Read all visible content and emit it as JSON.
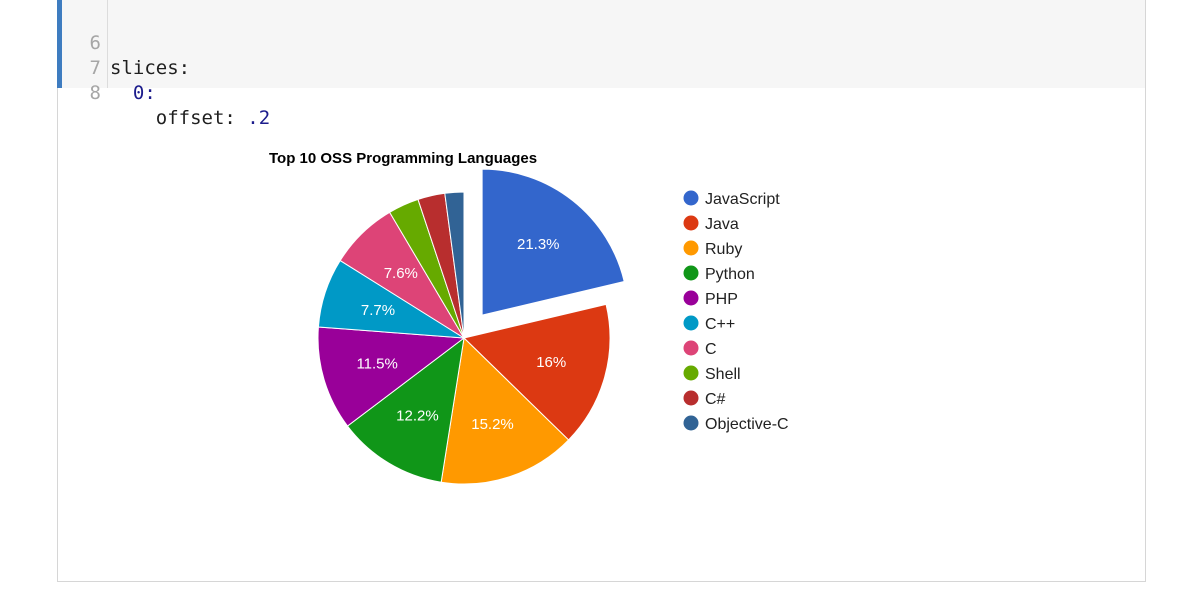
{
  "code": {
    "lines": [
      {
        "num": "6",
        "prefix": "slices:",
        "value": ""
      },
      {
        "num": "7",
        "prefix": "  ",
        "value": "0:"
      },
      {
        "num": "8",
        "prefix": "    offset: ",
        "value": ".2"
      }
    ],
    "accent_color": "#3e7cc0"
  },
  "chart_data": {
    "type": "pie",
    "title": "Top 10 OSS Programming Languages",
    "legend_position": "right",
    "slices": [
      {
        "label": "JavaScript",
        "value": 21.3,
        "data_label": "21.3%",
        "color": "#3366cc",
        "offset": 0.2
      },
      {
        "label": "Java",
        "value": 16.0,
        "data_label": "16%",
        "color": "#dc3912",
        "offset": 0
      },
      {
        "label": "Ruby",
        "value": 15.2,
        "data_label": "15.2%",
        "color": "#ff9900",
        "offset": 0
      },
      {
        "label": "Python",
        "value": 12.2,
        "data_label": "12.2%",
        "color": "#109618",
        "offset": 0
      },
      {
        "label": "PHP",
        "value": 11.5,
        "data_label": "11.5%",
        "color": "#990099",
        "offset": 0
      },
      {
        "label": "C++",
        "value": 7.7,
        "data_label": "7.7%",
        "color": "#0099c6",
        "offset": 0
      },
      {
        "label": "C",
        "value": 7.6,
        "data_label": "7.6%",
        "color": "#dd4477",
        "offset": 0
      },
      {
        "label": "Shell",
        "value": 3.4,
        "data_label": "",
        "color": "#66aa00",
        "offset": 0
      },
      {
        "label": "C#",
        "value": 3.0,
        "data_label": "",
        "color": "#b82e2e",
        "offset": 0
      },
      {
        "label": "Objective-C",
        "value": 2.1,
        "data_label": "",
        "color": "#316395",
        "offset": 0
      }
    ]
  }
}
